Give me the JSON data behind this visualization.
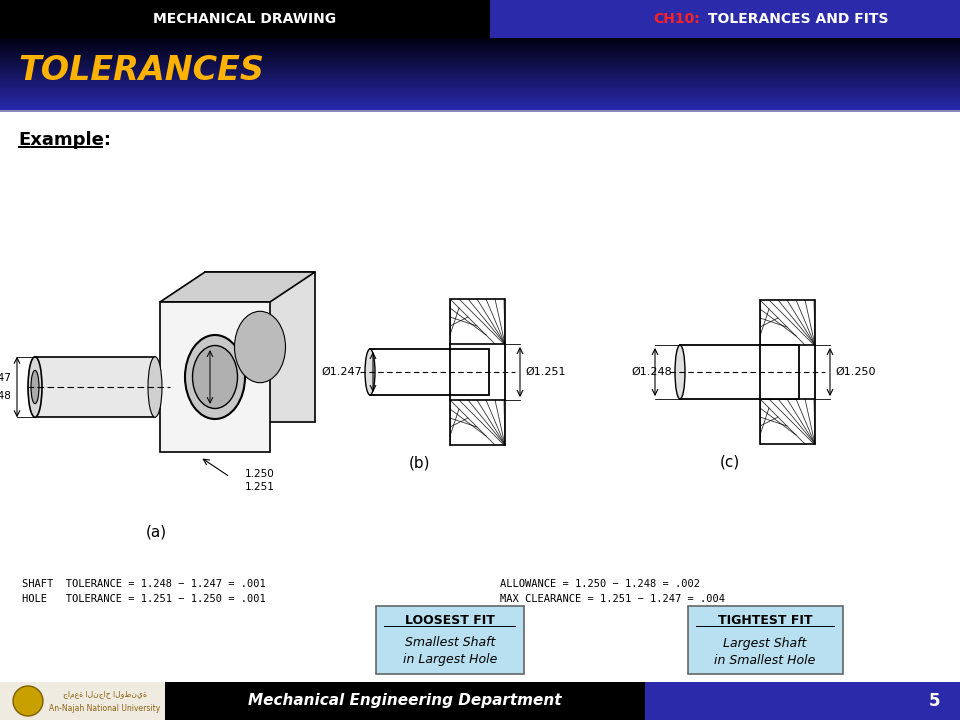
{
  "header_left_text": "MECHANICAL DRAWING",
  "header_left_bg": "#000000",
  "header_right_ch": "CH10:",
  "header_right_bg": "#2a2aaa",
  "header_right_rest": " TOLERANCES AND FITS",
  "title_text": "TOLERANCES",
  "title_color": "#FFB300",
  "body_bg": "#ffffff",
  "example_text": "Example:",
  "footer_left_bg": "#000000",
  "footer_right_bg": "#2a2aaa",
  "footer_center_text": "Mechanical Engineering Department",
  "footer_page": "5"
}
